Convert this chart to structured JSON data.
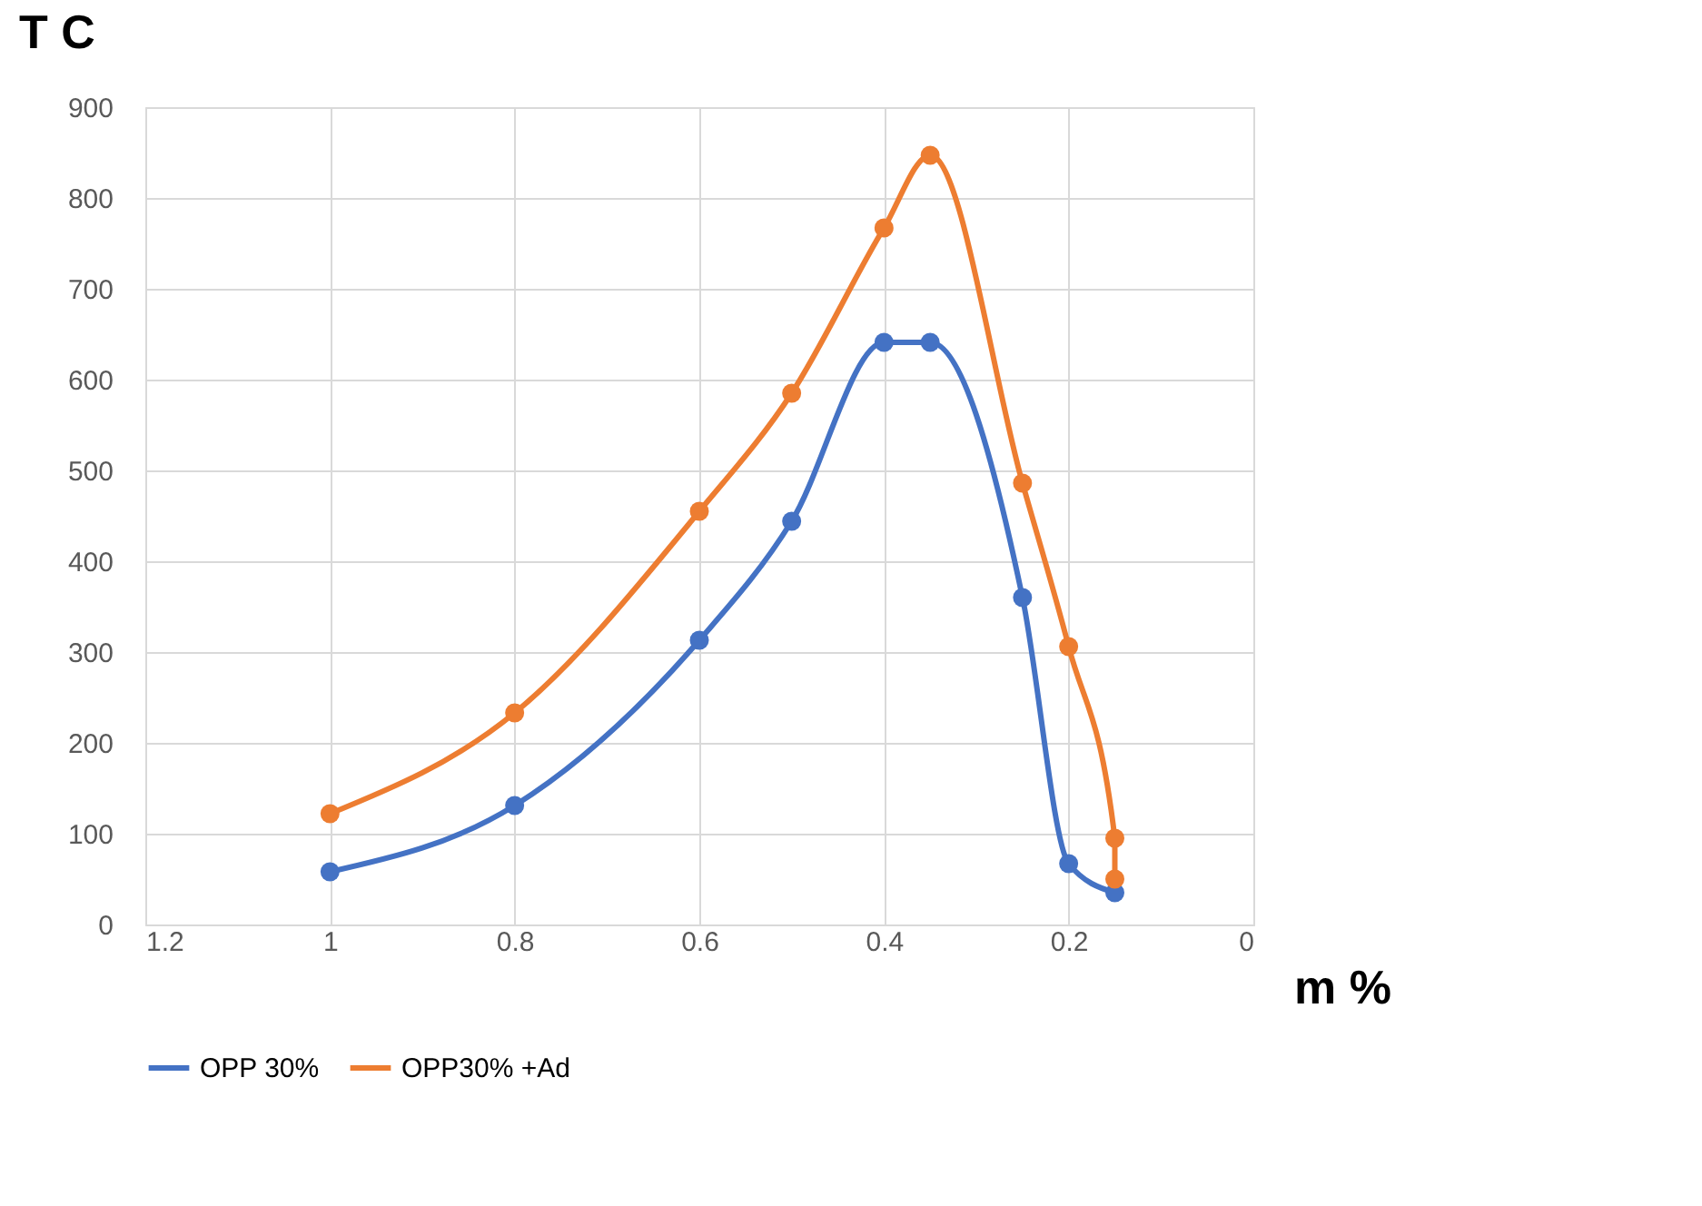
{
  "chart_data": {
    "type": "line",
    "xlabel": "m %",
    "ylabel": "T C",
    "x": [
      1,
      0.8,
      0.6,
      0.5,
      0.4,
      0.35,
      0.25,
      0.2,
      0.15
    ],
    "series": [
      {
        "name": "OPP 30%",
        "color": "#4472c4",
        "values": [
          58,
          131,
          313,
          444,
          641,
          641,
          360,
          67,
          35
        ]
      },
      {
        "name": "OPP30% +Ad",
        "color": "#ed7d31",
        "x": [
          1,
          0.8,
          0.6,
          0.5,
          0.4,
          0.35,
          0.25,
          0.2,
          0.15,
          0.15
        ],
        "values": [
          122,
          233,
          455,
          585,
          767,
          847,
          486,
          306,
          95,
          50
        ]
      }
    ],
    "xlim": [
      1.2,
      0
    ],
    "xticks": [
      1.2,
      1,
      0.8,
      0.6,
      0.4,
      0.2,
      0
    ],
    "ylim": [
      0,
      900
    ],
    "yticks": [
      0,
      100,
      200,
      300,
      400,
      500,
      600,
      700,
      800,
      900
    ],
    "grid": true,
    "legend": "bottom",
    "marker": "circle",
    "line_style": "solid"
  }
}
